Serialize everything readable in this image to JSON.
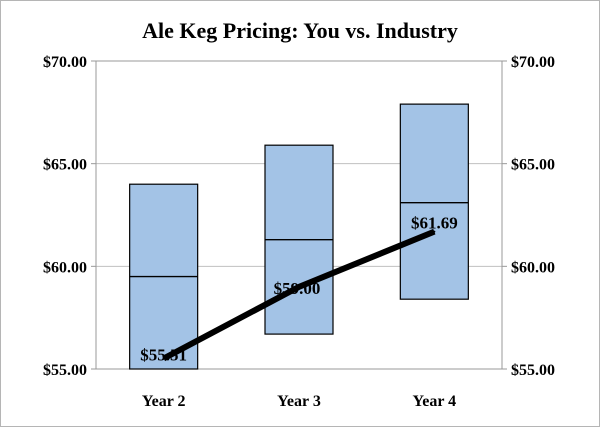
{
  "chart_data": {
    "type": "floating-bar-with-line",
    "title": "Ale Keg Pricing: You vs. Industry",
    "xlabel": "",
    "ylabel": "",
    "categories": [
      "Year 2",
      "Year 3",
      "Year 4"
    ],
    "ylim": [
      55,
      70
    ],
    "y_ticks": [
      "$55.00",
      "$60.00",
      "$65.00",
      "$70.00"
    ],
    "y_tick_values": [
      55,
      60,
      65,
      70
    ],
    "grid": true,
    "axes": "left-and-right",
    "industry_range": {
      "low": [
        55.0,
        56.7,
        58.4
      ],
      "median": [
        59.5,
        61.3,
        63.1
      ],
      "high": [
        64.0,
        65.9,
        67.9
      ]
    },
    "your_price": {
      "values": [
        55.51,
        59.0,
        61.69
      ],
      "labels": [
        "$55.51",
        "$59.00",
        "$61.69"
      ]
    },
    "colors": {
      "box_fill": "#a3c3e6",
      "box_stroke": "#000000",
      "line": "#000000",
      "grid": "#c0c0c0"
    }
  }
}
